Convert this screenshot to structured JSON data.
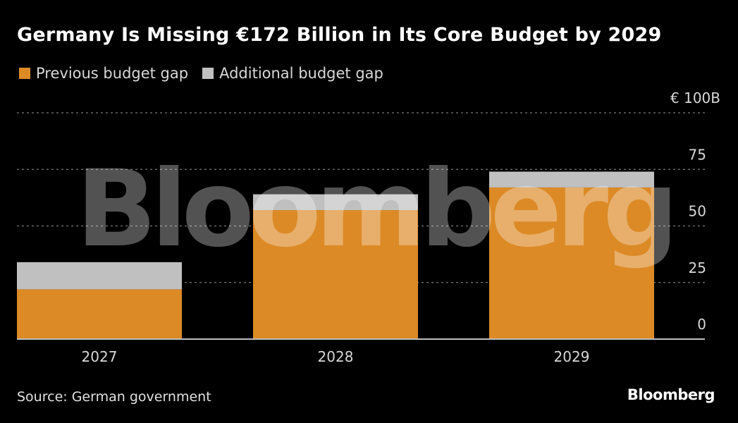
{
  "header": {
    "title": "Germany Is Missing €172 Billion in Its Core Budget by 2029"
  },
  "footer": {
    "source": "Source: German government",
    "brand": "Bloomberg"
  },
  "watermark": "Bloomberg",
  "colors": {
    "background": "#000000",
    "previous": "#dc8a26",
    "additional": "#c0c0c0",
    "grid": "#7a7a7a",
    "axis": "#bdbdbd"
  },
  "chart_data": {
    "type": "bar",
    "stacked": true,
    "title": "Germany Is Missing €172 Billion in Its Core Budget by 2029",
    "categories": [
      "2027",
      "2028",
      "2029"
    ],
    "series": [
      {
        "name": "Previous budget gap",
        "values": [
          22,
          57,
          67
        ]
      },
      {
        "name": "Additional budget gap",
        "values": [
          12,
          7,
          7
        ]
      }
    ],
    "xlabel": "",
    "ylabel": "",
    "ylim": [
      0,
      100
    ],
    "yticks": [
      0,
      25,
      50,
      75,
      100
    ],
    "ytick_labels": [
      "0",
      "25",
      "50",
      "75",
      "€ 100B"
    ],
    "grid": true,
    "legend": "top-left",
    "y_axis_side": "right"
  }
}
